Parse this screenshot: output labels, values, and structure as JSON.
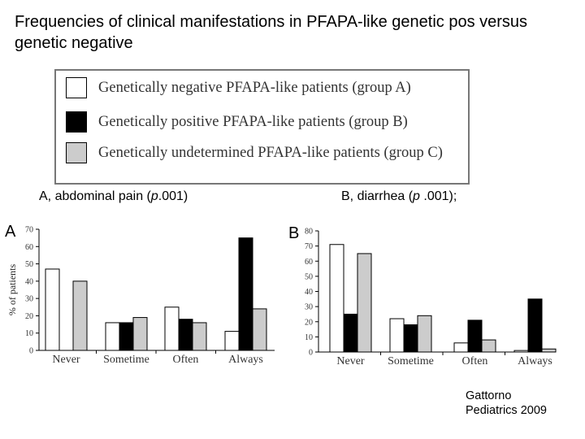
{
  "title": "Frequencies of clinical manifestations in PFAPA-like genetic pos versus genetic negative",
  "legend": [
    {
      "label": "Genetically negative PFAPA-like patients (group A)",
      "color": "#ffffff"
    },
    {
      "label": "Genetically positive PFAPA-like patients (group B)",
      "color": "#000000"
    },
    {
      "label": "Genetically undetermined PFAPA-like patients (group C)",
      "color": "#cccccc"
    }
  ],
  "panels": {
    "a": {
      "subtitle_prefix": "A, abdominal pain (",
      "subtitle_p": "p",
      "subtitle_suffix": ".001)",
      "letter": "A"
    },
    "b": {
      "subtitle_prefix": "B, diarrhea (",
      "subtitle_p": "p",
      "subtitle_suffix": "  .001);",
      "letter": "B"
    }
  },
  "citation": {
    "line1": "Gattorno",
    "line2": "Pediatrics 2009"
  },
  "chart_data": [
    {
      "type": "bar",
      "ylabel": "% of patients",
      "xlabel": "",
      "ylim": [
        0,
        70
      ],
      "yticks": [
        0,
        10,
        20,
        30,
        40,
        50,
        60,
        70
      ],
      "categories": [
        "Never",
        "Sometime",
        "Often",
        "Always"
      ],
      "series": [
        {
          "name": "Genetically negative PFAPA-like patients (group A)",
          "color": "#ffffff",
          "values": [
            47,
            16,
            25,
            11
          ]
        },
        {
          "name": "Genetically positive PFAPA-like patients (group B)",
          "color": "#000000",
          "values": [
            0,
            16,
            18,
            65
          ]
        },
        {
          "name": "Genetically undetermined PFAPA-like patients (group C)",
          "color": "#cccccc",
          "values": [
            40,
            19,
            16,
            24
          ]
        }
      ],
      "grid": false
    },
    {
      "type": "bar",
      "ylabel": "",
      "xlabel": "",
      "ylim": [
        0,
        80
      ],
      "yticks": [
        0,
        10,
        20,
        30,
        40,
        50,
        60,
        70,
        80
      ],
      "categories": [
        "Never",
        "Sometime",
        "Often",
        "Always"
      ],
      "series": [
        {
          "name": "Genetically negative PFAPA-like patients (group A)",
          "color": "#ffffff",
          "values": [
            71,
            22,
            6,
            1
          ]
        },
        {
          "name": "Genetically positive PFAPA-like patients (group B)",
          "color": "#000000",
          "values": [
            25,
            18,
            21,
            35
          ]
        },
        {
          "name": "Genetically undetermined PFAPA-like patients (group C)",
          "color": "#cccccc",
          "values": [
            65,
            24,
            8,
            2
          ]
        }
      ],
      "grid": false
    }
  ]
}
